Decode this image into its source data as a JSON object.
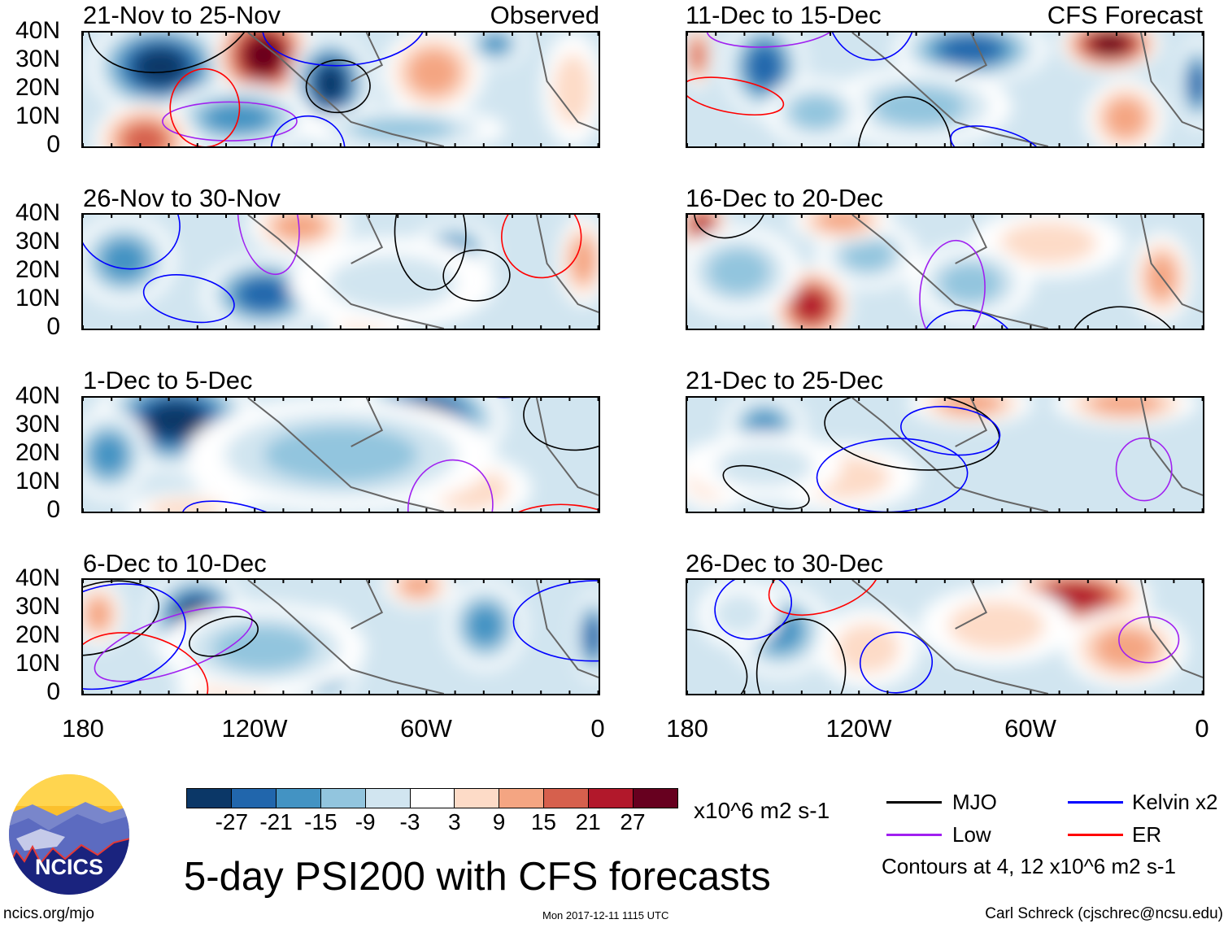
{
  "panels_left": [
    {
      "title": "21-Nov to 25-Nov",
      "tag": "Observed"
    },
    {
      "title": "26-Nov to 30-Nov"
    },
    {
      "title": "1-Dec to 5-Dec"
    },
    {
      "title": "6-Dec to 10-Dec"
    }
  ],
  "panels_right": [
    {
      "title": "11-Dec to 15-Dec",
      "tag": "CFS Forecast"
    },
    {
      "title": "16-Dec to 20-Dec"
    },
    {
      "title": "21-Dec to 25-Dec"
    },
    {
      "title": "26-Dec to 30-Dec"
    }
  ],
  "y_ticks": [
    "40N",
    "30N",
    "20N",
    "10N",
    "0"
  ],
  "x_ticks": [
    "180",
    "120W",
    "60W",
    "0"
  ],
  "colorbar": {
    "colors": [
      "#0b3767",
      "#2166ac",
      "#4393c3",
      "#92c5de",
      "#d1e5f0",
      "#ffffff",
      "#fddbc7",
      "#f4a582",
      "#d6604d",
      "#b2182b",
      "#67001f"
    ],
    "labels": [
      "-27",
      "-21",
      "-15",
      "-9",
      "-3",
      "3",
      "9",
      "15",
      "21",
      "27"
    ],
    "units": "x10^6 m2 s-1"
  },
  "legend": {
    "items": [
      {
        "label": "MJO",
        "color": "#000000"
      },
      {
        "label": "Kelvin x2",
        "color": "#0000ff"
      },
      {
        "label": "Low",
        "color": "#a020f0"
      },
      {
        "label": "ER",
        "color": "#ff0000"
      }
    ],
    "contours_note": "Contours at 4, 12 x10^6 m2 s-1"
  },
  "title": "5-day PSI200 with CFS forecasts",
  "logo_text": "NCICS",
  "footer": {
    "url": "ncics.org/mjo",
    "timestamp": "Mon 2017-12-11 1115 UTC",
    "author": "Carl Schreck (cjschrec@ncsu.edu)"
  }
}
